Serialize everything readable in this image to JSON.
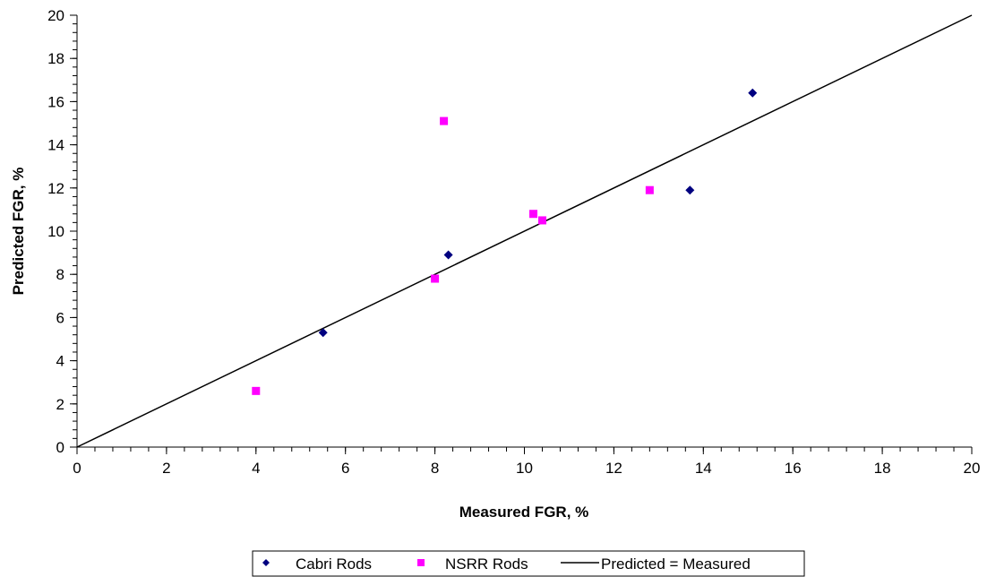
{
  "chart_data": {
    "type": "scatter",
    "title": "",
    "xlabel": "Measured FGR, %",
    "ylabel": "Predicted FGR, %",
    "xlim": [
      0,
      20
    ],
    "ylim": [
      0,
      20
    ],
    "xticks": [
      0,
      2,
      4,
      6,
      8,
      10,
      12,
      14,
      16,
      18,
      20
    ],
    "yticks": [
      0,
      2,
      4,
      6,
      8,
      10,
      12,
      14,
      16,
      18,
      20
    ],
    "minor_tick_step": 0.4,
    "grid": false,
    "legend_position": "bottom",
    "series": [
      {
        "name": "Cabri Rods",
        "marker": "diamond",
        "color": "#000080",
        "points": [
          [
            5.5,
            5.3
          ],
          [
            8.3,
            8.9
          ],
          [
            13.7,
            11.9
          ],
          [
            15.1,
            16.4
          ]
        ]
      },
      {
        "name": "NSRR Rods",
        "marker": "square",
        "color": "#FF00FF",
        "points": [
          [
            4.0,
            2.6
          ],
          [
            8.0,
            7.8
          ],
          [
            8.2,
            15.1
          ],
          [
            10.2,
            10.8
          ],
          [
            10.4,
            10.5
          ],
          [
            12.8,
            11.9
          ]
        ]
      }
    ],
    "reference_line": {
      "name": "Predicted = Measured",
      "color": "#000000",
      "points": [
        [
          0,
          0
        ],
        [
          20,
          20
        ]
      ]
    }
  }
}
